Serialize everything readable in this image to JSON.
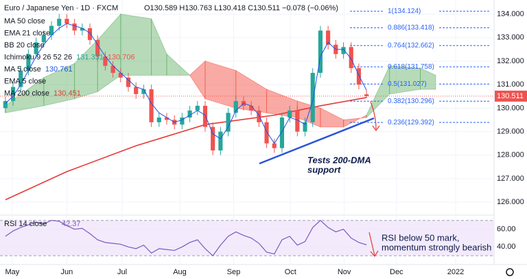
{
  "chart_data": {
    "type": "candlestick",
    "title": "Euro / Japanese Yen · 1D · FXCM",
    "ohlc_text": "O130.589 H130.763 L130.418 C130.511 −0.078 (−0.06%)",
    "indicators": [
      {
        "name": "MA 50 close"
      },
      {
        "name": "EMA 21 close"
      },
      {
        "name": "BB 20 close"
      },
      {
        "name": "Ichimoku 9 26 52 26",
        "values": [
          131.331,
          130.706
        ],
        "colors": [
          "#26a69a",
          "#ef5350"
        ]
      },
      {
        "name": "MA 5 close",
        "values": [
          130.761
        ],
        "colors": [
          "#1e53e5"
        ]
      },
      {
        "name": "EMA 5 close"
      },
      {
        "name": "MA 200 close",
        "values": [
          130.451
        ],
        "colors": [
          "#e53935"
        ]
      }
    ],
    "open": [
      130.0,
      130.3,
      130.9,
      131.6,
      132.3,
      132.8,
      133.1,
      133.5,
      133.8,
      133.6,
      133.3,
      133.4,
      132.9,
      132.2,
      131.8,
      131.5,
      131.3,
      130.9,
      130.6,
      130.8,
      129.4,
      129.6,
      129.5,
      129.3,
      129.6,
      129.9,
      130.1,
      129.2,
      128.2,
      129.0,
      129.8,
      130.3,
      130.1,
      129.9,
      129.4,
      128.5,
      128.3,
      129.6,
      129.9,
      129.0,
      129.4,
      131.5,
      133.3,
      132.7,
      132.3,
      132.6,
      131.7,
      130.589
    ],
    "high": [
      130.5,
      131.1,
      131.8,
      132.5,
      133.0,
      133.3,
      133.7,
      134.0,
      134.0,
      133.8,
      133.6,
      133.6,
      133.1,
      132.4,
      132.0,
      131.7,
      131.5,
      131.1,
      131.0,
      131.0,
      129.8,
      129.8,
      129.7,
      129.8,
      130.1,
      130.3,
      130.3,
      129.4,
      129.2,
      130.0,
      130.5,
      130.5,
      130.3,
      130.1,
      129.6,
      128.7,
      129.8,
      130.1,
      130.1,
      129.6,
      131.7,
      133.5,
      133.5,
      132.9,
      132.8,
      132.8,
      131.9,
      130.763
    ],
    "low": [
      129.8,
      130.1,
      130.7,
      131.4,
      132.1,
      132.6,
      132.9,
      133.3,
      133.4,
      133.1,
      133.1,
      132.7,
      132.0,
      131.6,
      131.3,
      131.1,
      130.7,
      130.4,
      130.4,
      129.2,
      129.2,
      129.3,
      129.1,
      129.1,
      129.4,
      129.7,
      129.0,
      128.0,
      128.0,
      128.8,
      129.6,
      129.9,
      129.7,
      129.2,
      128.3,
      128.1,
      128.1,
      129.4,
      128.8,
      128.8,
      129.2,
      131.3,
      132.5,
      132.1,
      132.1,
      131.5,
      130.8,
      130.418
    ],
    "close": [
      130.3,
      130.9,
      131.6,
      132.3,
      132.8,
      133.1,
      133.5,
      133.8,
      133.6,
      133.3,
      133.4,
      132.9,
      132.2,
      131.8,
      131.5,
      131.3,
      130.9,
      130.6,
      130.8,
      129.4,
      129.6,
      129.5,
      129.3,
      129.6,
      129.9,
      130.1,
      129.2,
      128.2,
      129.0,
      129.8,
      130.3,
      130.1,
      129.9,
      129.4,
      128.5,
      128.3,
      129.6,
      129.9,
      129.0,
      129.4,
      131.5,
      133.3,
      132.7,
      132.3,
      132.6,
      131.7,
      131.0,
      130.511
    ],
    "up_color": "#26a69a",
    "down_color": "#ef5350",
    "ma5": {
      "color": "#1e53e5",
      "values": [
        130.2,
        130.5,
        131.0,
        131.6,
        132.2,
        132.7,
        133.1,
        133.4,
        133.6,
        133.5,
        133.4,
        133.2,
        132.7,
        132.2,
        131.8,
        131.5,
        131.2,
        130.9,
        130.8,
        130.2,
        129.8,
        129.6,
        129.4,
        129.5,
        129.7,
        129.9,
        129.7,
        128.9,
        128.7,
        129.2,
        129.9,
        130.2,
        130.1,
        129.7,
        129.0,
        128.5,
        129.0,
        129.6,
        129.5,
        129.3,
        130.3,
        132.2,
        132.8,
        132.5,
        132.5,
        132.1,
        131.4,
        130.761
      ]
    },
    "ma200": {
      "color": "#e53935",
      "x": [
        0,
        8,
        17,
        26,
        35,
        41,
        47
      ],
      "values": [
        126.1,
        127.3,
        128.4,
        129.3,
        129.7,
        130.1,
        130.451
      ]
    },
    "cloud": {
      "x": [
        0,
        5,
        9,
        12,
        15,
        19,
        21,
        24,
        26,
        30,
        34,
        38,
        41,
        44,
        47,
        50,
        54,
        56
      ],
      "span_a": [
        130.1,
        131.3,
        131.9,
        132.9,
        134.0,
        133.8,
        132.3,
        131.4,
        130.4,
        130.0,
        129.8,
        129.6,
        129.2,
        129.2,
        129.7,
        131.8,
        131.7,
        131.4
      ],
      "span_b": [
        129.8,
        130.1,
        130.4,
        130.7,
        131.4,
        131.4,
        131.4,
        131.4,
        132.0,
        131.6,
        130.8,
        130.3,
        130.0,
        129.5,
        129.6,
        130.6,
        130.8,
        130.8
      ],
      "up_color": "rgba(67,160,71,0.38)",
      "down_color": "rgba(244,67,54,0.45)"
    },
    "ylim": [
      125.45,
      134.6
    ],
    "yticks": [
      {
        "value": 126,
        "label": "126.000"
      },
      {
        "value": 127,
        "label": "127.000"
      },
      {
        "value": 128,
        "label": "128.000"
      },
      {
        "value": 129,
        "label": "129.000"
      },
      {
        "value": 130,
        "label": "130.000"
      },
      {
        "value": 131,
        "label": "131.000"
      },
      {
        "value": 132,
        "label": "132.000"
      },
      {
        "value": 133,
        "label": "133.000"
      },
      {
        "value": 134,
        "label": "134.000"
      }
    ],
    "xlim": [
      -0.7,
      63.6
    ],
    "xticks": [
      {
        "value": 0.9,
        "label": "May"
      },
      {
        "value": 8,
        "label": "Jun"
      },
      {
        "value": 15.2,
        "label": "Jul"
      },
      {
        "value": 22.7,
        "label": "Aug"
      },
      {
        "value": 29.7,
        "label": "Sep"
      },
      {
        "value": 37.1,
        "label": "Oct"
      },
      {
        "value": 44.1,
        "label": "Nov"
      },
      {
        "value": 50.9,
        "label": "Dec"
      },
      {
        "value": 58.6,
        "label": "2022"
      }
    ],
    "last_price": {
      "value": 130.511,
      "label": "130.511",
      "color": "#ef5350"
    },
    "fib_levels": [
      {
        "value": 134.124,
        "label": "1(134.124)"
      },
      {
        "value": 133.418,
        "label": "0.886(133.418)"
      },
      {
        "value": 132.662,
        "label": "0.764(132.662)"
      },
      {
        "value": 131.758,
        "label": "0.618(131.758)"
      },
      {
        "value": 131.027,
        "label": "0.5(131.027)"
      },
      {
        "value": 130.296,
        "label": "0.382(130.296)"
      },
      {
        "value": 129.392,
        "label": "0.236(129.392)"
      }
    ],
    "annotation": [
      "Tests 200-DMA",
      "support"
    ],
    "rsi": {
      "title": "RSI 14 close",
      "last": 42.37,
      "color": "#7e57c2",
      "values": [
        52,
        58,
        62,
        65,
        68,
        66,
        70,
        69,
        64,
        60,
        61,
        55,
        48,
        45,
        44,
        43,
        40,
        38,
        42,
        33,
        38,
        37,
        36,
        40,
        45,
        48,
        38,
        30,
        42,
        52,
        57,
        53,
        50,
        44,
        34,
        32,
        48,
        52,
        42,
        46,
        62,
        70,
        62,
        57,
        60,
        50,
        45,
        42.37
      ],
      "ylim": [
        20,
        76
      ],
      "band": [
        30,
        70
      ],
      "yticks": [
        {
          "value": 60,
          "label": "60.00"
        },
        {
          "value": 40,
          "label": "40.00"
        }
      ],
      "annotation": [
        "RSI below 50 mark,",
        "momentum strongly bearish"
      ]
    }
  }
}
